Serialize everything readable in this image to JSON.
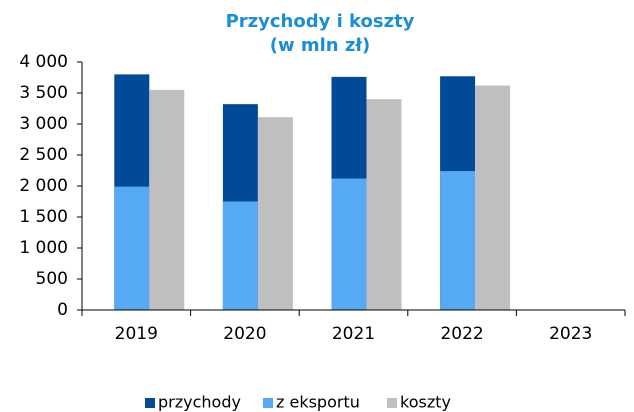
{
  "chart_data": {
    "type": "bar",
    "title": "Przychody i koszty",
    "subtitle": "(w mln zł)",
    "categories": [
      "2019",
      "2020",
      "2021",
      "2022",
      "2023"
    ],
    "series": [
      {
        "name": "przychody",
        "color": "#004a98",
        "values": [
          3800,
          3320,
          3760,
          3770,
          null
        ]
      },
      {
        "name": "z eksportu",
        "color": "#56aaf4",
        "values": [
          1990,
          1750,
          2120,
          2240,
          null
        ]
      },
      {
        "name": "koszty",
        "color": "#bfbfbf",
        "values": [
          3550,
          3110,
          3400,
          3620,
          null
        ]
      }
    ],
    "ylim": [
      0,
      4000
    ],
    "yticks": [
      0,
      500,
      {
        "value": 1000,
        "label": "1 000"
      },
      {
        "value": 1500,
        "label": "1 500"
      },
      {
        "value": 2000,
        "label": "2 000"
      },
      {
        "value": 2500,
        "label": "2 500"
      },
      {
        "value": 3000,
        "label": "3 000"
      },
      {
        "value": 3500,
        "label": "3 500"
      },
      {
        "value": 4000,
        "label": "4 000"
      }
    ],
    "grid": false,
    "legend": "bottom"
  }
}
